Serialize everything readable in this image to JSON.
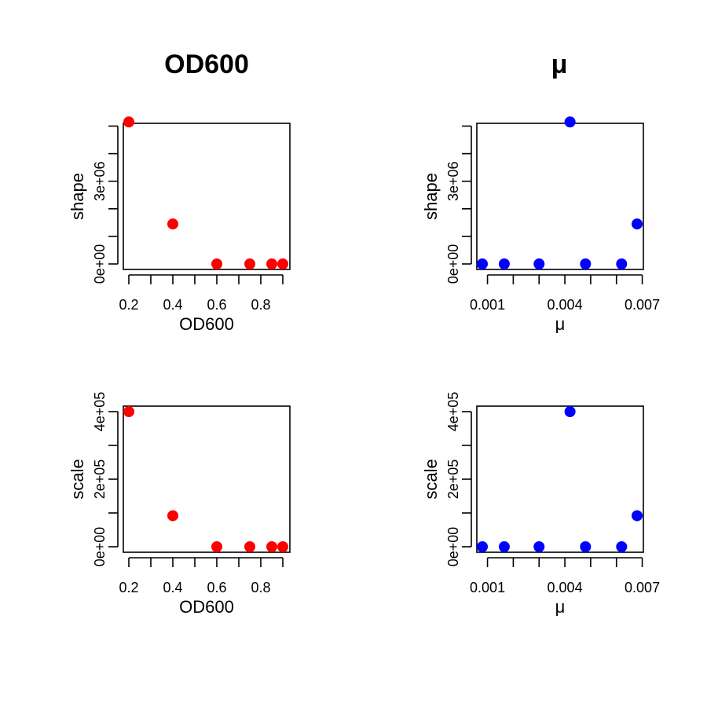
{
  "figure": {
    "col_titles": [
      "OD600",
      "μ"
    ]
  },
  "colors": {
    "red": "#ff0000",
    "blue": "#0000ff"
  },
  "chart_data": [
    {
      "type": "scatter",
      "title": "OD600",
      "xlabel": "OD600",
      "ylabel": "shape",
      "xlim": [
        0.2,
        0.9
      ],
      "ylim": [
        0,
        5100000
      ],
      "x_ticks": [
        0.2,
        0.3,
        0.4,
        0.5,
        0.6,
        0.7,
        0.8,
        0.9
      ],
      "x_tick_labels": [
        {
          "v": 0.2,
          "t": "0.2"
        },
        {
          "v": 0.4,
          "t": "0.4"
        },
        {
          "v": 0.6,
          "t": "0.6"
        },
        {
          "v": 0.8,
          "t": "0.8"
        }
      ],
      "y_ticks": [
        0,
        1000000,
        2000000,
        3000000,
        4000000,
        5000000
      ],
      "y_tick_labels": [
        {
          "v": 0,
          "t": "0e+00"
        },
        {
          "v": 3000000,
          "t": "3e+06"
        }
      ],
      "color": "#ff0000",
      "grid": false,
      "points": [
        {
          "x": 0.2,
          "y": 5150000
        },
        {
          "x": 0.4,
          "y": 1450000
        },
        {
          "x": 0.6,
          "y": 0
        },
        {
          "x": 0.75,
          "y": 0
        },
        {
          "x": 0.85,
          "y": 0
        },
        {
          "x": 0.9,
          "y": 0
        }
      ]
    },
    {
      "type": "scatter",
      "title": "μ",
      "xlabel": "μ",
      "ylabel": "shape",
      "xlim": [
        0.0008,
        0.0068
      ],
      "ylim": [
        0,
        5100000
      ],
      "x_ticks": [
        0.001,
        0.002,
        0.003,
        0.004,
        0.005,
        0.006,
        0.007
      ],
      "x_tick_labels": [
        {
          "v": 0.001,
          "t": "0.001"
        },
        {
          "v": 0.004,
          "t": "0.004"
        },
        {
          "v": 0.007,
          "t": "0.007"
        }
      ],
      "y_ticks": [
        0,
        1000000,
        2000000,
        3000000,
        4000000,
        5000000
      ],
      "y_tick_labels": [
        {
          "v": 0,
          "t": "0e+00"
        },
        {
          "v": 3000000,
          "t": "3e+06"
        }
      ],
      "color": "#0000ff",
      "grid": false,
      "points": [
        {
          "x": 0.0008,
          "y": 0
        },
        {
          "x": 0.00165,
          "y": 0
        },
        {
          "x": 0.003,
          "y": 0
        },
        {
          "x": 0.0042,
          "y": 5150000
        },
        {
          "x": 0.0048,
          "y": 0
        },
        {
          "x": 0.0062,
          "y": 0
        },
        {
          "x": 0.0068,
          "y": 1450000
        }
      ]
    },
    {
      "type": "scatter",
      "xlabel": "OD600",
      "ylabel": "scale",
      "xlim": [
        0.2,
        0.9
      ],
      "ylim": [
        0,
        400000
      ],
      "x_ticks": [
        0.2,
        0.3,
        0.4,
        0.5,
        0.6,
        0.7,
        0.8,
        0.9
      ],
      "x_tick_labels": [
        {
          "v": 0.2,
          "t": "0.2"
        },
        {
          "v": 0.4,
          "t": "0.4"
        },
        {
          "v": 0.6,
          "t": "0.6"
        },
        {
          "v": 0.8,
          "t": "0.8"
        }
      ],
      "y_ticks": [
        0,
        100000,
        200000,
        300000,
        400000
      ],
      "y_tick_labels": [
        {
          "v": 0,
          "t": "0e+00"
        },
        {
          "v": 200000,
          "t": "2e+05"
        },
        {
          "v": 400000,
          "t": "4e+05"
        }
      ],
      "color": "#ff0000",
      "grid": false,
      "points": [
        {
          "x": 0.2,
          "y": 400000
        },
        {
          "x": 0.4,
          "y": 92000
        },
        {
          "x": 0.6,
          "y": 0
        },
        {
          "x": 0.75,
          "y": 0
        },
        {
          "x": 0.85,
          "y": 0
        },
        {
          "x": 0.9,
          "y": 0
        }
      ]
    },
    {
      "type": "scatter",
      "xlabel": "μ",
      "ylabel": "scale",
      "xlim": [
        0.0008,
        0.0068
      ],
      "ylim": [
        0,
        400000
      ],
      "x_ticks": [
        0.001,
        0.002,
        0.003,
        0.004,
        0.005,
        0.006,
        0.007
      ],
      "x_tick_labels": [
        {
          "v": 0.001,
          "t": "0.001"
        },
        {
          "v": 0.004,
          "t": "0.004"
        },
        {
          "v": 0.007,
          "t": "0.007"
        }
      ],
      "y_ticks": [
        0,
        100000,
        200000,
        300000,
        400000
      ],
      "y_tick_labels": [
        {
          "v": 0,
          "t": "0e+00"
        },
        {
          "v": 200000,
          "t": "2e+05"
        },
        {
          "v": 400000,
          "t": "4e+05"
        }
      ],
      "color": "#0000ff",
      "grid": false,
      "points": [
        {
          "x": 0.0008,
          "y": 0
        },
        {
          "x": 0.00165,
          "y": 0
        },
        {
          "x": 0.003,
          "y": 0
        },
        {
          "x": 0.0042,
          "y": 400000
        },
        {
          "x": 0.0048,
          "y": 0
        },
        {
          "x": 0.0062,
          "y": 0
        },
        {
          "x": 0.0068,
          "y": 92000
        }
      ]
    }
  ]
}
